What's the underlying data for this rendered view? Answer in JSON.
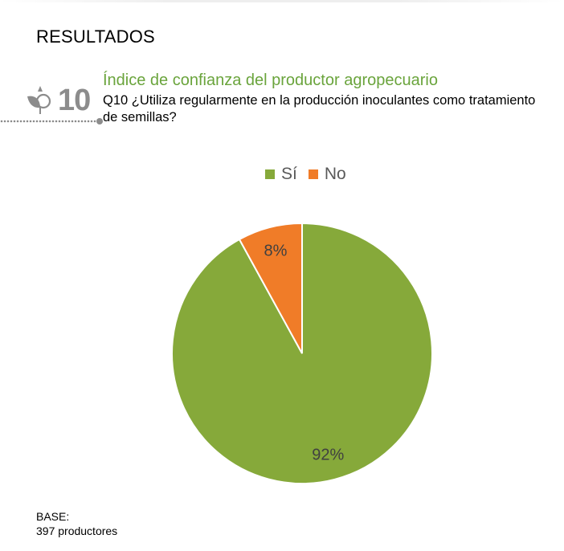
{
  "header": {
    "title": "RESULTADOS",
    "question_number": "10",
    "subtitle": "Índice de confianza del productor agropecuario",
    "question": "Q10 ¿Utiliza regularmente en la producción inoculantes como tratamiento de semillas?"
  },
  "icons": {
    "badge": "leaf-icon"
  },
  "colors": {
    "green": "#86a93a",
    "orange": "#f07c28",
    "subtitle_green": "#6aa43c",
    "badge_gray": "#8c8c8c"
  },
  "chart_data": {
    "type": "pie",
    "categories": [
      "Sí",
      "No"
    ],
    "values": [
      92,
      8
    ],
    "labels": [
      "92%",
      "8%"
    ],
    "colors": [
      "#86a93a",
      "#f07c28"
    ],
    "legend_position": "top"
  },
  "footer": {
    "base_label": "BASE:",
    "base_value": "397 productores"
  }
}
